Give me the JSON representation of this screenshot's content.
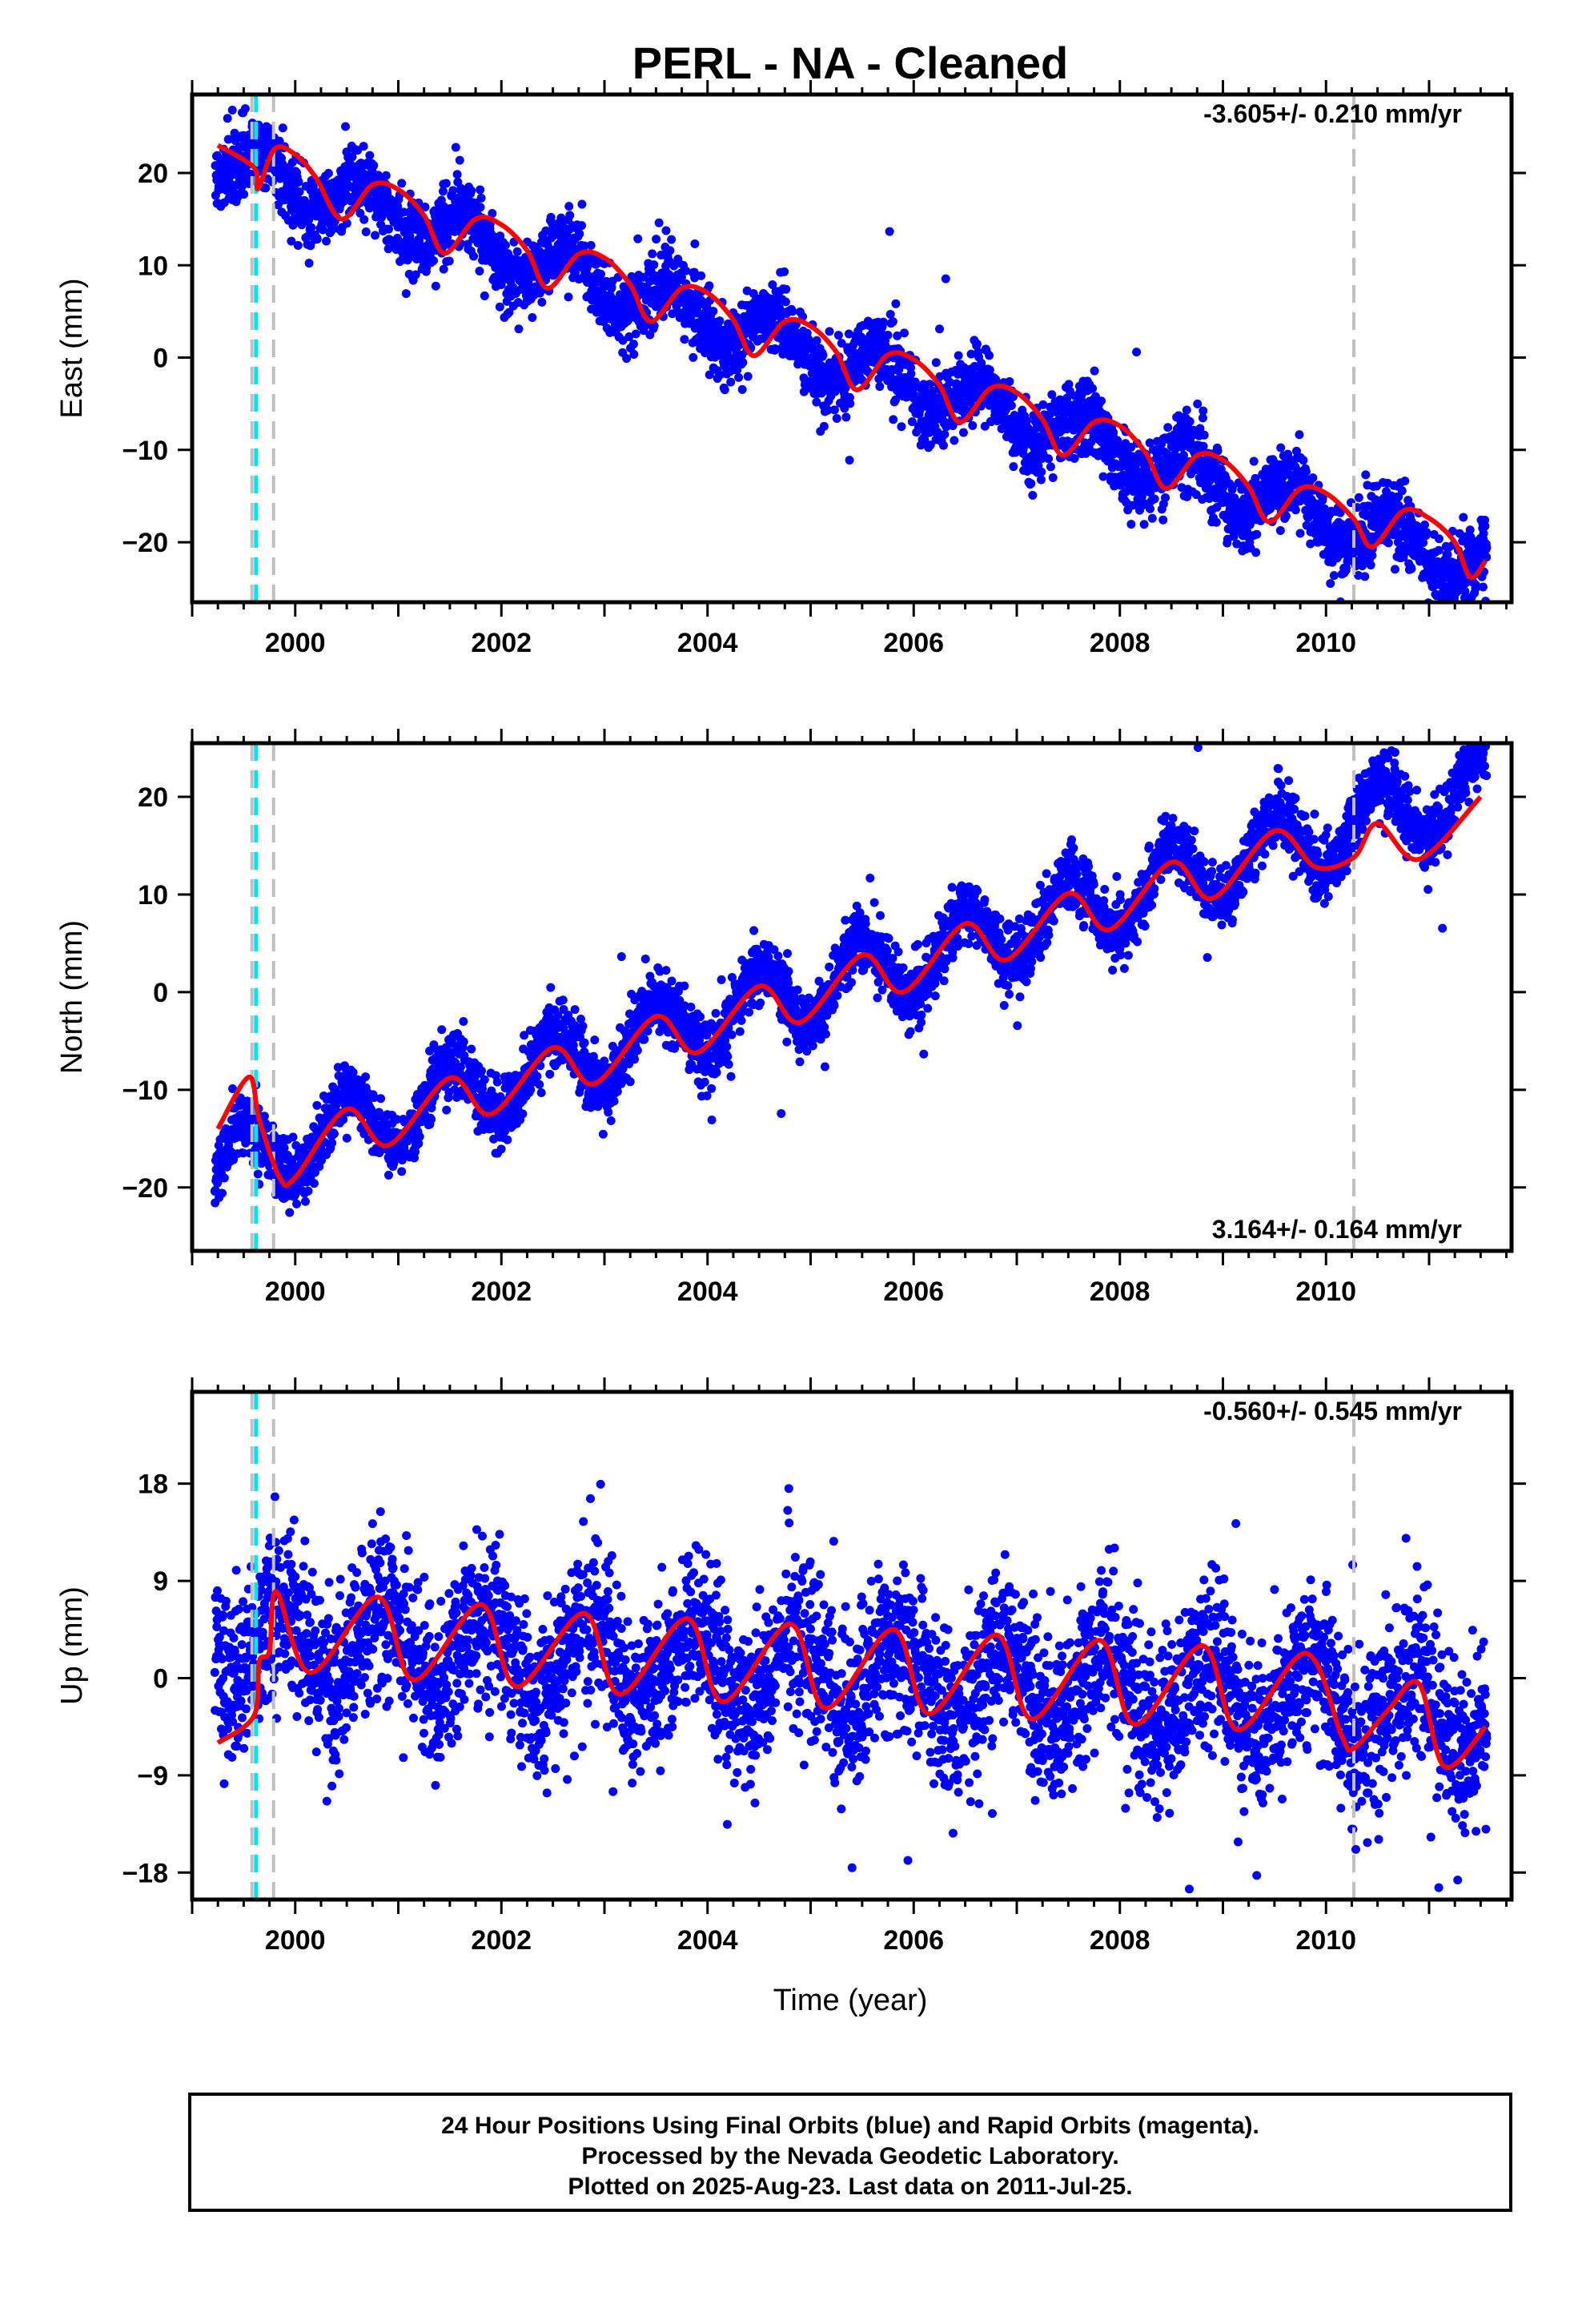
{
  "title": "PERL  - NA - Cleaned",
  "x_axis_label": "Time (year)",
  "footer": [
    "24 Hour Positions Using Final Orbits (blue) and Rapid Orbits (magenta).",
    "Processed by the Nevada Geodetic Laboratory.",
    "Plotted on 2025-Aug-23. Last data on 2011-Jul-25."
  ],
  "colors": {
    "points": "#0000ff",
    "fit": "#ff0000",
    "event_cyan": "#00e5ee",
    "event_gray": "#c0c0c0"
  },
  "chart_data": [
    {
      "type": "scatter",
      "name": "east",
      "ylabel": "East (mm)",
      "rate": "-3.605+/- 0.210 mm/yr",
      "rate_position": "top-right",
      "xlim": [
        1999.0,
        2011.8
      ],
      "ylim": [
        -26.5,
        28.5
      ],
      "xticks": [
        2000,
        2002,
        2004,
        2006,
        2008,
        2010
      ],
      "yticks": [
        -20,
        -10,
        0,
        10,
        20
      ],
      "vlines": {
        "cyan": [
          1999.62
        ],
        "gray": [
          1999.58,
          1999.79,
          2010.27
        ]
      },
      "fit_x": [
        1999.25,
        1999.6,
        1999.64,
        1999.8,
        2000.0,
        2000.2,
        2000.45,
        2000.75,
        2001.0,
        2001.25,
        2001.45,
        2001.75,
        2002.0,
        2002.25,
        2002.45,
        2002.75,
        2003.0,
        2003.25,
        2003.45,
        2003.75,
        2004.0,
        2004.25,
        2004.45,
        2004.75,
        2005.0,
        2005.25,
        2005.45,
        2005.75,
        2006.0,
        2006.25,
        2006.45,
        2006.75,
        2007.0,
        2007.25,
        2007.45,
        2007.75,
        2008.0,
        2008.25,
        2008.45,
        2008.75,
        2009.0,
        2009.25,
        2009.45,
        2009.75,
        2010.0,
        2010.27,
        2010.45,
        2010.75,
        2011.0,
        2011.25,
        2011.4,
        2011.55
      ],
      "fit_y": [
        23.0,
        20.6,
        18.3,
        22.6,
        22.0,
        19.5,
        15.0,
        18.7,
        18.2,
        15.4,
        11.3,
        15.0,
        14.4,
        11.6,
        7.5,
        11.2,
        10.8,
        7.9,
        3.9,
        7.5,
        7.0,
        4.1,
        0.2,
        3.9,
        3.4,
        0.6,
        -3.5,
        0.3,
        -0.2,
        -3.0,
        -7.0,
        -3.3,
        -3.8,
        -6.7,
        -10.6,
        -7.0,
        -7.4,
        -10.3,
        -14.2,
        -10.6,
        -11.1,
        -14.0,
        -17.8,
        -14.2,
        -14.7,
        -17.5,
        -20.5,
        -16.6,
        -17.4,
        -20.0,
        -23.8,
        -22.0
      ],
      "points": {
        "slope": -3.605,
        "x0": 1999.25,
        "y0": 21.5,
        "amp": 2.6,
        "phase": 0.4,
        "noise": 1.9,
        "start": 1999.22,
        "end": 2011.56
      }
    },
    {
      "type": "scatter",
      "name": "north",
      "ylabel": "North (mm)",
      "rate": "3.164+/- 0.164 mm/yr",
      "rate_position": "bottom-right",
      "xlim": [
        1999.0,
        2011.8
      ],
      "ylim": [
        -26.5,
        25.5
      ],
      "xticks": [
        2000,
        2002,
        2004,
        2006,
        2008,
        2010
      ],
      "yticks": [
        -20,
        -10,
        0,
        10,
        20
      ],
      "vlines": {
        "cyan": [
          1999.62
        ],
        "gray": [
          1999.58,
          1999.79,
          2010.27
        ]
      },
      "fit_x": [
        1999.25,
        1999.55,
        1999.65,
        1999.85,
        2000.0,
        2000.5,
        2000.9,
        2001.5,
        2001.9,
        2002.5,
        2002.9,
        2003.5,
        2003.9,
        2004.5,
        2004.9,
        2005.5,
        2005.9,
        2006.5,
        2006.9,
        2007.5,
        2007.9,
        2008.5,
        2008.9,
        2009.5,
        2009.9,
        2010.27,
        2010.5,
        2010.9,
        2011.5
      ],
      "fit_y": [
        -14.0,
        -8.7,
        -13.0,
        -19.0,
        -19.0,
        -12.0,
        -15.7,
        -8.8,
        -12.5,
        -5.7,
        -9.4,
        -2.5,
        -6.2,
        0.6,
        -3.1,
        3.8,
        0.0,
        7.0,
        3.3,
        10.1,
        6.4,
        13.3,
        9.6,
        16.5,
        12.8,
        13.8,
        17.3,
        13.6,
        20.0
      ],
      "points": {
        "slope": 3.164,
        "x0": 2000.0,
        "y0": -15.5,
        "amp": 3.5,
        "phase": 0.25,
        "noise": 1.6,
        "start": 1999.22,
        "end": 2011.56
      }
    },
    {
      "type": "scatter",
      "name": "up",
      "ylabel": "Up (mm)",
      "rate": "-0.560+/- 0.545 mm/yr",
      "rate_position": "top-right",
      "xlim": [
        1999.0,
        2011.8
      ],
      "ylim": [
        -20.5,
        26.5
      ],
      "xticks": [
        2000,
        2002,
        2004,
        2006,
        2008,
        2010
      ],
      "yticks": [
        -18,
        -9,
        0,
        9,
        18
      ],
      "vlines": {
        "cyan": [
          1999.62
        ],
        "gray": [
          1999.58,
          1999.79,
          2010.27
        ]
      },
      "fit_x": [
        1999.25,
        1999.6,
        1999.65,
        1999.75,
        1999.82,
        2000.15,
        2000.8,
        2001.15,
        2001.8,
        2002.15,
        2002.8,
        2003.15,
        2003.8,
        2004.15,
        2004.8,
        2005.15,
        2005.8,
        2006.15,
        2006.8,
        2007.15,
        2007.8,
        2008.15,
        2008.8,
        2009.15,
        2009.8,
        2010.15,
        2010.27,
        2010.6,
        2010.9,
        2011.15,
        2011.55
      ],
      "fit_y": [
        -6.0,
        -3.5,
        1.5,
        2.5,
        8.0,
        0.5,
        7.5,
        -0.2,
        6.8,
        -0.8,
        6.0,
        -1.5,
        5.5,
        -2.2,
        5.0,
        -2.8,
        4.5,
        -3.3,
        4.0,
        -3.8,
        3.5,
        -4.3,
        3.0,
        -4.8,
        2.3,
        -5.3,
        -6.5,
        -3.0,
        -0.5,
        -8.2,
        -4.5
      ],
      "points": {
        "slope": -0.56,
        "x0": 2005.0,
        "y0": 0.5,
        "amp": 3.5,
        "phase": 0.6,
        "noise": 3.8,
        "start": 1999.22,
        "end": 2011.56
      }
    }
  ]
}
